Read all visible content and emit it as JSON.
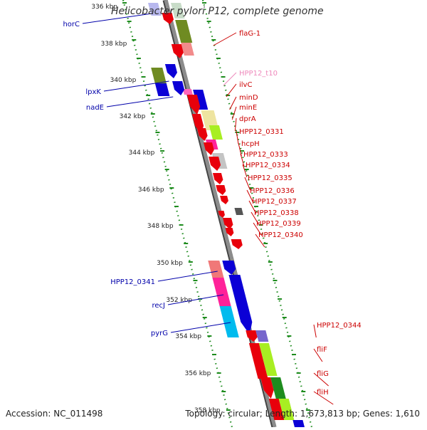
{
  "title": "Helicobacter pylori P12, complete genome",
  "footer": {
    "accession": "Accession: NC_011498",
    "summary": "Topology: circular; Length: 1,673,813 bp; Genes: 1,610"
  },
  "colors": {
    "backbone": "#8c8c8c",
    "tick": "#1e8c1e",
    "label_red": "#cc0000",
    "label_blue": "#0000aa",
    "label_pink": "#ee88bb"
  },
  "scale_labels": [
    "336 kbp",
    "338 kbp",
    "340 kbp",
    "342 kbp",
    "344 kbp",
    "346 kbp",
    "348 kbp",
    "350 kbp",
    "352 kbp",
    "354 kbp",
    "356 kbp",
    "358 kbp"
  ],
  "left_genes": [
    "horC",
    "lpxK",
    "nadE",
    "HPP12_0341",
    "recJ",
    "pyrG"
  ],
  "right_genes": [
    "flaG-1",
    "HPP12_t10",
    "ilvC",
    "minD",
    "minE",
    "dprA",
    "HPP12_0331",
    "hcpH",
    "HPP12_0333",
    "HPP12_0334",
    "HPP12_0335",
    "HPP12_0336",
    "HPP12_0337",
    "HPP12_0338",
    "HPP12_0339",
    "HPP12_0340",
    "HPP12_0344",
    "fliF",
    "fliG",
    "fliH"
  ]
}
